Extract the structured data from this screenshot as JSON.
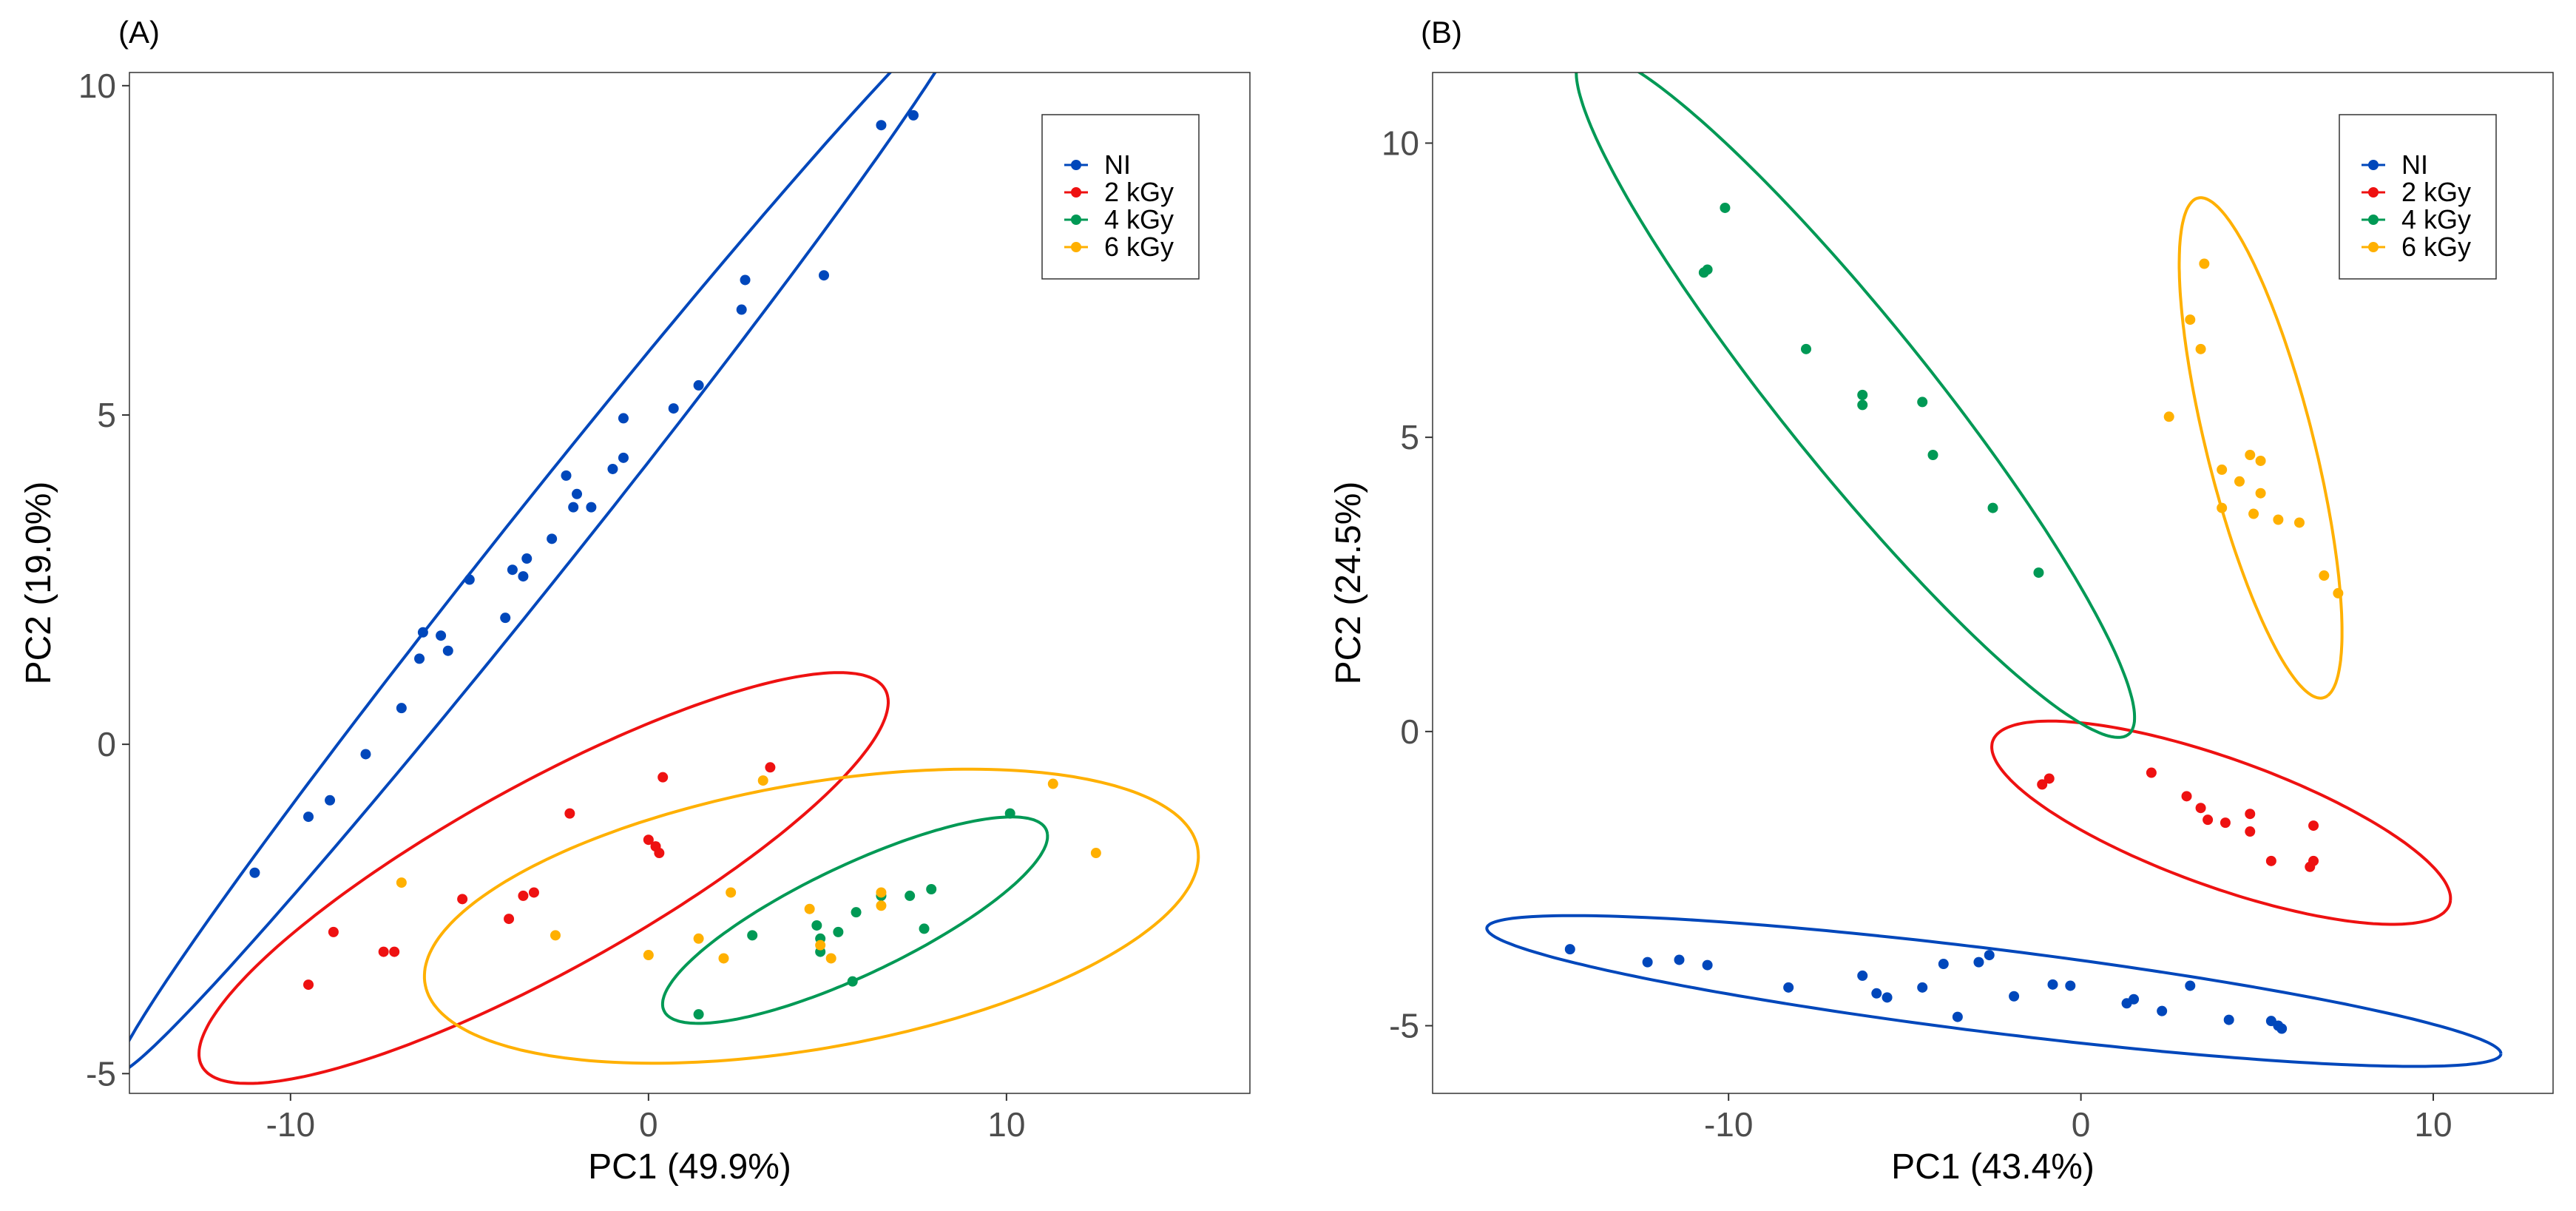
{
  "colors": {
    "NI": "#0047BB",
    "2 kGy": "#EE1111",
    "4 kGy": "#009955",
    "6 kGy": "#FFB000"
  },
  "groups": [
    "NI",
    "2 kGy",
    "4 kGy",
    "6 kGy"
  ],
  "chart_data": [
    {
      "type": "scatter",
      "panel_label": "(A)",
      "xlabel": "PC1 (49.9%)",
      "ylabel": "PC2 (19.0%)",
      "xlim": [
        -14.5,
        16.8
      ],
      "ylim": [
        -5.3,
        10.2
      ],
      "xticks": [
        -10,
        0,
        10
      ],
      "xtick_labels": [
        "-10",
        "0",
        "10"
      ],
      "yticks": [
        -5,
        0,
        5,
        10
      ],
      "ytick_labels": [
        "-5",
        "0",
        "5",
        "10"
      ],
      "legend": {
        "position": "top-right",
        "entries": [
          "NI",
          "2 kGy",
          "4 kGy",
          "6 kGy"
        ]
      },
      "series": [
        {
          "name": "NI",
          "x": [
            -11,
            -9.5,
            -8.9,
            -7.9,
            -6.9,
            -6.4,
            -6.3,
            -5.8,
            -5.6,
            -5,
            -4,
            -3.8,
            -3.5,
            -3.4,
            -2.7,
            -2.3,
            -2.1,
            -2,
            -1.6,
            -1,
            -0.7,
            -0.7,
            0.7,
            1.4,
            2.6,
            2.7,
            4.9,
            6.5,
            7.4
          ],
          "y": [
            -1.95,
            -1.1,
            -0.85,
            -0.15,
            0.55,
            1.3,
            1.7,
            1.65,
            1.42,
            2.5,
            1.92,
            2.65,
            2.55,
            2.82,
            3.12,
            4.08,
            3.6,
            3.8,
            3.6,
            4.18,
            4.35,
            4.95,
            5.1,
            5.45,
            6.6,
            7.05,
            7.12,
            9.4,
            9.55
          ]
        },
        {
          "name": "2 kGy",
          "x": [
            -9.5,
            -8.8,
            -7.4,
            -7.1,
            -5.2,
            -3.9,
            -3.5,
            -3.2,
            -2.2,
            0,
            0.2,
            0.3,
            0.4,
            3.4
          ],
          "y": [
            -3.65,
            -2.85,
            -3.15,
            -3.15,
            -2.35,
            -2.65,
            -2.3,
            -2.25,
            -1.05,
            -1.45,
            -1.55,
            -1.65,
            -0.5,
            -0.35
          ]
        },
        {
          "name": "4 kGy",
          "x": [
            1.4,
            2.9,
            4.7,
            4.8,
            4.8,
            5.3,
            5.7,
            5.8,
            6.5,
            7.3,
            7.7,
            7.9,
            10.1
          ],
          "y": [
            -4.1,
            -2.9,
            -2.75,
            -2.95,
            -3.15,
            -2.85,
            -3.6,
            -2.55,
            -2.3,
            -2.3,
            -2.8,
            -2.2,
            -1.05
          ]
        },
        {
          "name": "6 kGy",
          "x": [
            -6.9,
            -2.6,
            0,
            1.4,
            2.1,
            2.3,
            3.2,
            4.5,
            4.8,
            5.1,
            6.5,
            6.5,
            11.3,
            12.5
          ],
          "y": [
            -2.1,
            -2.9,
            -3.2,
            -2.95,
            -3.25,
            -2.25,
            -0.55,
            -2.5,
            -3.05,
            -3.25,
            -2.25,
            -2.45,
            -0.6,
            -1.65
          ]
        }
      ],
      "ellipses": [
        {
          "name": "NI",
          "cx": -2.93,
          "cy": 3.14,
          "rx": 14.41,
          "ry": 0.714,
          "angle_deg": 34.2
        },
        {
          "name": "2 kGy",
          "cx": -2.93,
          "cy": -2.03,
          "rx": 10.0,
          "ry": 1.55,
          "angle_deg": 15.9
        },
        {
          "name": "4 kGy",
          "cx": 5.77,
          "cy": -2.67,
          "rx": 5.53,
          "ry": 0.886,
          "angle_deg": 13.7
        },
        {
          "name": "6 kGy",
          "cx": 4.55,
          "cy": -2.61,
          "rx": 10.85,
          "ry": 2.03,
          "angle_deg": 5.0
        }
      ]
    },
    {
      "type": "scatter",
      "panel_label": "(B)",
      "xlabel": "PC1 (43.4%)",
      "ylabel": "PC2 (24.5%)",
      "xlim": [
        -18.4,
        13.4
      ],
      "ylim": [
        -6.15,
        11.2
      ],
      "xticks": [
        -10,
        0,
        10
      ],
      "xtick_labels": [
        "-10",
        "0",
        "10"
      ],
      "yticks": [
        -5,
        0,
        5,
        10
      ],
      "ytick_labels": [
        "-5",
        "0",
        "5",
        "10"
      ],
      "legend": {
        "position": "top-right",
        "entries": [
          "NI",
          "2 kGy",
          "4 kGy",
          "6 kGy"
        ]
      },
      "series": [
        {
          "name": "NI",
          "x": [
            -14.5,
            -12.3,
            -11.4,
            -10.6,
            -8.3,
            -6.2,
            -5.8,
            -5.5,
            -4.5,
            -3.9,
            -3.5,
            -2.9,
            -2.6,
            -1.9,
            -0.8,
            -0.3,
            1.3,
            1.5,
            2.3,
            3.1,
            4.2,
            5.4,
            5.6,
            5.7
          ],
          "y": [
            -3.7,
            -3.92,
            -3.88,
            -3.97,
            -4.35,
            -4.15,
            -4.45,
            -4.52,
            -4.35,
            -3.95,
            -4.85,
            -3.92,
            -3.8,
            -4.5,
            -4.3,
            -4.32,
            -4.62,
            -4.55,
            -4.75,
            -4.32,
            -4.9,
            -4.92,
            -5.0,
            -5.05
          ]
        },
        {
          "name": "2 kGy",
          "x": [
            -1.1,
            -0.9,
            2,
            3,
            3.4,
            3.6,
            4.1,
            4.8,
            4.8,
            5.4,
            6.6,
            6.5,
            6.6
          ],
          "y": [
            -0.9,
            -0.8,
            -0.7,
            -1.1,
            -1.3,
            -1.5,
            -1.55,
            -1.4,
            -1.7,
            -2.2,
            -1.6,
            -2.3,
            -2.2
          ]
        },
        {
          "name": "4 kGy",
          "x": [
            -10.7,
            -10.6,
            -10.1,
            -7.8,
            -6.2,
            -6.2,
            -4.5,
            -4.2,
            -2.5,
            -1.2
          ],
          "y": [
            7.8,
            7.85,
            8.9,
            6.5,
            5.72,
            5.55,
            5.6,
            4.7,
            3.8,
            2.7
          ]
        },
        {
          "name": "6 kGy",
          "x": [
            2.5,
            3.1,
            3.5,
            3.4,
            4,
            4,
            4.5,
            4.8,
            4.9,
            5.1,
            5.1,
            5.6,
            6.2,
            6.9,
            7.3
          ],
          "y": [
            5.35,
            7.0,
            7.95,
            6.5,
            4.45,
            3.8,
            4.25,
            4.7,
            3.7,
            4.6,
            4.05,
            3.6,
            3.55,
            2.65,
            2.35
          ]
        }
      ],
      "ellipses": [
        {
          "name": "NI",
          "cx": -2.47,
          "cy": -4.41,
          "rx": 14.43,
          "ry": 0.712,
          "angle_deg": -4.24
        },
        {
          "name": "2 kGy",
          "cx": 3.98,
          "cy": -1.55,
          "rx": 6.64,
          "ry": 1.128,
          "angle_deg": -11.53
        },
        {
          "name": "4 kGy",
          "cx": -6.4,
          "cy": 5.72,
          "rx": 9.7,
          "ry": 1.6,
          "angle_deg": -35.8
        },
        {
          "name": "6 kGy",
          "cx": 5.1,
          "cy": 4.82,
          "rx": 4.62,
          "ry": 1.44,
          "angle_deg": -65.7
        }
      ]
    }
  ]
}
